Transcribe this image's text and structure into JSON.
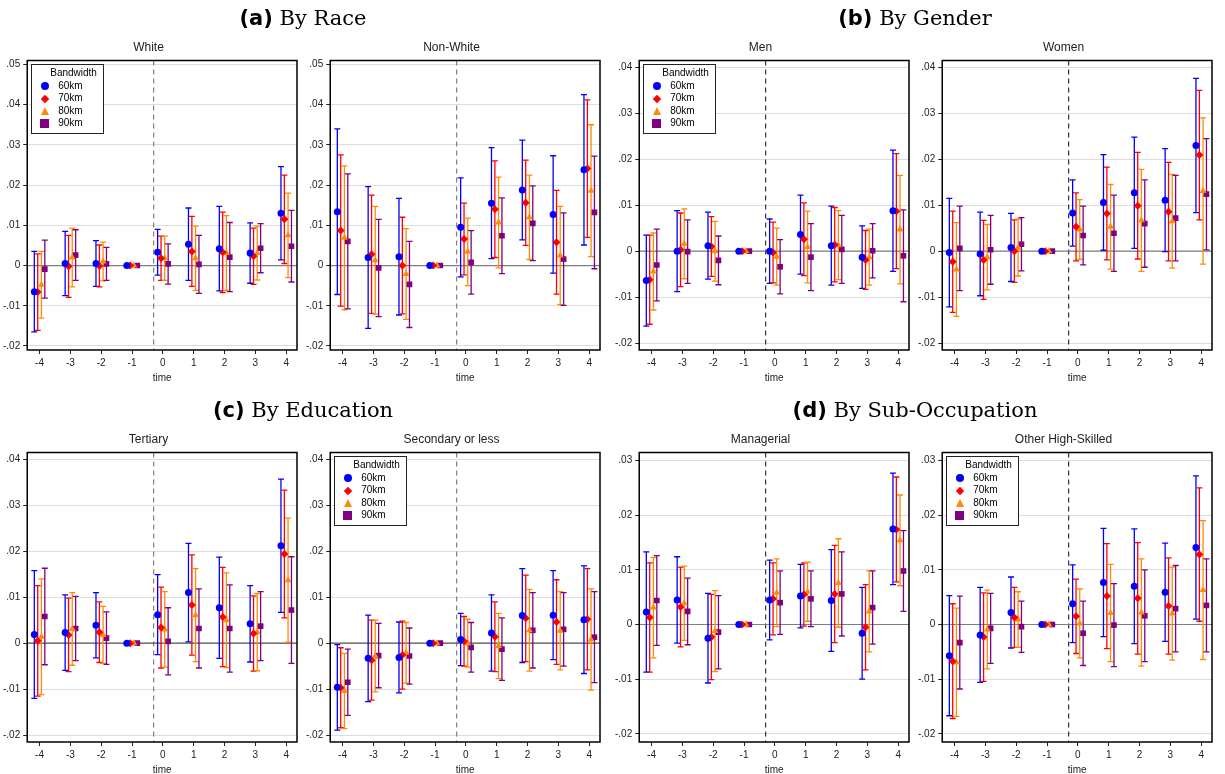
{
  "chart_data": [
    {
      "type": "scatter",
      "title": "White",
      "annotations": [
        "(a) By Race"
      ],
      "xlabel": "time",
      "xlim": [
        -4.4,
        4.35
      ],
      "xticks": [
        -4,
        -3,
        -2,
        -1,
        0,
        1,
        2,
        3,
        4
      ],
      "ylim": [
        -0.021,
        0.051
      ],
      "yticks": [
        {
          "value": -0.02,
          "label": "-.02"
        },
        {
          "value": -0.01,
          "label": "-.01"
        },
        {
          "value": 0,
          "label": "0"
        },
        {
          "value": 0.01,
          "label": ".01"
        },
        {
          "value": 0.02,
          "label": ".02"
        },
        {
          "value": 0.03,
          "label": ".03"
        },
        {
          "value": 0.04,
          "label": ".04"
        },
        {
          "value": 0.05,
          "label": ".05"
        }
      ],
      "grid": "y",
      "legend": "top left",
      "legend_title": "Bandwidth",
      "ref_lines": [
        {
          "axis": "x",
          "value": -0.3,
          "color": "#7f7f7f",
          "line_style": "dashed"
        },
        {
          "axis": "y",
          "value": 0,
          "color": "#7f7f7f",
          "line_style": "solid"
        }
      ],
      "series": [
        {
          "name": "60km",
          "color": "#0000ff",
          "marker": "circle",
          "x": [
            -4.17,
            -3.17,
            -2.17,
            -1.17,
            -0.17,
            0.83,
            1.83,
            2.83,
            3.83
          ],
          "values": [
            -0.0065,
            0.0005,
            0.0005,
            0,
            0.0033,
            0.0053,
            0.0042,
            0.0031,
            0.013
          ],
          "errors": [
            0.01,
            0.008,
            0.0057,
            0,
            0.0057,
            0.009,
            0.0105,
            0.0075,
            0.0116
          ]
        },
        {
          "name": "70km",
          "color": "#ff0000",
          "marker": "diamond",
          "x": [
            -4.06,
            -3.06,
            -2.06,
            -1.06,
            -0.06,
            0.94,
            1.94,
            2.94,
            3.94
          ],
          "values": [
            -0.0066,
            -0.0002,
            -0.0001,
            0,
            0.0018,
            0.0035,
            0.0033,
            0.0023,
            0.0115
          ],
          "errors": [
            0.0095,
            0.0077,
            0.0052,
            0,
            0.0055,
            0.0087,
            0.01,
            0.007,
            0.011
          ]
        },
        {
          "name": "80km",
          "color": "#ff8c00",
          "marker": "triangle",
          "x": [
            -3.94,
            -2.94,
            -1.94,
            -0.94,
            0.06,
            1.06,
            2.06,
            3.06,
            4.06
          ],
          "values": [
            -0.0048,
            0.002,
            0.001,
            0,
            0.0018,
            0.0018,
            0.0031,
            0.0031,
            0.0075
          ],
          "errors": [
            0.0083,
            0.0073,
            0.0048,
            0,
            0.0055,
            0.008,
            0.0093,
            0.0067,
            0.0105
          ]
        },
        {
          "name": "90km",
          "color": "#800080",
          "marker": "square",
          "x": [
            -3.83,
            -2.83,
            -1.83,
            -0.83,
            0.17,
            1.17,
            2.17,
            3.17,
            4.17
          ],
          "values": [
            -0.0009,
            0.0026,
            0.0004,
            0,
            0.0004,
            0.0003,
            0.0021,
            0.0043,
            0.0048
          ],
          "errors": [
            0.0072,
            0.0063,
            0.0041,
            0,
            0.005,
            0.0072,
            0.0086,
            0.0061,
            0.0089
          ]
        }
      ]
    },
    {
      "type": "scatter",
      "title": "Non-White",
      "xlabel": "time",
      "xlim": [
        -4.4,
        4.35
      ],
      "xticks": [
        -4,
        -3,
        -2,
        -1,
        0,
        1,
        2,
        3,
        4
      ],
      "ylim": [
        -0.021,
        0.051
      ],
      "yticks": [
        {
          "value": -0.02,
          "label": "-.02"
        },
        {
          "value": -0.01,
          "label": "-.01"
        },
        {
          "value": 0,
          "label": "0"
        },
        {
          "value": 0.01,
          "label": ".01"
        },
        {
          "value": 0.02,
          "label": ".02"
        },
        {
          "value": 0.03,
          "label": ".03"
        },
        {
          "value": 0.04,
          "label": ".04"
        },
        {
          "value": 0.05,
          "label": ".05"
        }
      ],
      "grid": "y",
      "ref_lines": [
        {
          "axis": "x",
          "value": -0.3,
          "color": "#7f7f7f",
          "line_style": "dashed"
        },
        {
          "axis": "y",
          "value": 0,
          "color": "#7f7f7f",
          "line_style": "solid"
        }
      ],
      "series": [
        {
          "color": "#0000ff",
          "marker": "circle",
          "x": [
            -4.17,
            -3.17,
            -2.17,
            -1.17,
            -0.17,
            0.83,
            1.83,
            2.83,
            3.83
          ],
          "values": [
            0.0134,
            0.002,
            0.0022,
            0,
            0.0095,
            0.0155,
            0.0188,
            0.0127,
            0.0238
          ],
          "errors": [
            0.0206,
            0.0176,
            0.0145,
            0,
            0.0123,
            0.0138,
            0.0124,
            0.0146,
            0.0187
          ]
        },
        {
          "color": "#ff0000",
          "marker": "diamond",
          "x": [
            -4.06,
            -3.06,
            -2.06,
            -1.06,
            -0.06,
            0.94,
            1.94,
            2.94,
            3.94
          ],
          "values": [
            0.0087,
            0.0028,
            0,
            0,
            0.0066,
            0.014,
            0.0156,
            0.0058,
            0.0241
          ],
          "errors": [
            0.0188,
            0.0147,
            0.012,
            0,
            0.0089,
            0.012,
            0.0106,
            0.0129,
            0.0171
          ]
        },
        {
          "color": "#ff8c00",
          "marker": "triangle",
          "x": [
            -3.94,
            -2.94,
            -1.94,
            -0.94,
            0.06,
            1.06,
            2.06,
            3.06,
            4.06
          ],
          "values": [
            0.0069,
            0.0013,
            -0.0021,
            0,
            0.0034,
            0.0107,
            0.012,
            0.0025,
            0.0186
          ],
          "errors": [
            0.0179,
            0.0134,
            0.0113,
            0,
            0.0084,
            0.0113,
            0.0105,
            0.0122,
            0.0164
          ]
        },
        {
          "color": "#800080",
          "marker": "square",
          "x": [
            -3.83,
            -2.83,
            -1.83,
            -0.83,
            0.17,
            1.17,
            2.17,
            3.17,
            4.17
          ],
          "values": [
            0.006,
            -0.0006,
            -0.0047,
            0,
            0.0008,
            0.0074,
            0.0105,
            0.0016,
            0.0132
          ],
          "errors": [
            0.0168,
            0.0121,
            0.0107,
            0,
            0.0079,
            0.0094,
            0.0093,
            0.0115,
            0.014
          ]
        }
      ]
    },
    {
      "type": "scatter",
      "title": "Men",
      "annotations": [
        "(b) By Gender"
      ],
      "xlabel": "time",
      "xlim": [
        -4.4,
        4.35
      ],
      "xticks": [
        -4,
        -3,
        -2,
        -1,
        0,
        1,
        2,
        3,
        4
      ],
      "ylim": [
        -0.0215,
        0.0415
      ],
      "yticks": [
        {
          "value": -0.02,
          "label": "-.02"
        },
        {
          "value": -0.01,
          "label": "-.01"
        },
        {
          "value": 0,
          "label": "0"
        },
        {
          "value": 0.01,
          "label": ".01"
        },
        {
          "value": 0.02,
          "label": ".02"
        },
        {
          "value": 0.03,
          "label": ".03"
        },
        {
          "value": 0.04,
          "label": ".04"
        }
      ],
      "grid": "y",
      "legend": "top left",
      "legend_title": "Bandwidth",
      "ref_lines": [
        {
          "axis": "x",
          "value": -0.3,
          "color": "#333333",
          "line_style": "dashed"
        },
        {
          "axis": "y",
          "value": 0,
          "color": "#7f7f7f",
          "line_style": "solid"
        }
      ],
      "series": [
        {
          "name": "60km",
          "color": "#0000ff",
          "marker": "circle",
          "x": [
            -4.17,
            -3.17,
            -2.17,
            -1.17,
            -0.17,
            0.83,
            1.83,
            2.83,
            3.83
          ],
          "values": [
            -0.0064,
            0,
            0.0012,
            0,
            0,
            0.0036,
            0.0012,
            -0.0013,
            0.0088
          ],
          "errors": [
            0.0099,
            0.0088,
            0.0073,
            0,
            0.007,
            0.0086,
            0.0086,
            0.0068,
            0.0132
          ]
        },
        {
          "name": "70km",
          "color": "#ff0000",
          "marker": "diamond",
          "x": [
            -4.06,
            -3.06,
            -2.06,
            -1.06,
            -0.06,
            0.94,
            1.94,
            2.94,
            3.94
          ],
          "values": [
            -0.0062,
            0.0003,
            0.001,
            0,
            -0.0003,
            0.0026,
            0.0014,
            -0.0019,
            0.0087
          ],
          "errors": [
            0.0097,
            0.008,
            0.0065,
            0,
            0.0066,
            0.0079,
            0.0081,
            0.0064,
            0.0125
          ]
        },
        {
          "name": "80km",
          "color": "#ff8c00",
          "marker": "triangle",
          "x": [
            -3.94,
            -2.94,
            -1.94,
            -0.94,
            0.06,
            1.06,
            2.06,
            3.06,
            4.06
          ],
          "values": [
            -0.0044,
            0.0016,
            0,
            0,
            -0.0012,
            0.0009,
            0.0013,
            -0.0013,
            0.0047
          ],
          "errors": [
            0.0084,
            0.0076,
            0.0065,
            0,
            0.0062,
            0.0078,
            0.0075,
            0.0061,
            0.0118
          ]
        },
        {
          "name": "90km",
          "color": "#800080",
          "marker": "square",
          "x": [
            -3.83,
            -2.83,
            -1.83,
            -0.83,
            0.17,
            1.17,
            2.17,
            3.17,
            4.17
          ],
          "values": [
            -0.003,
            -0.0001,
            -0.002,
            0,
            -0.0034,
            -0.0013,
            0.0004,
            0.0001,
            -0.001
          ],
          "errors": [
            0.0078,
            0.0069,
            0.0053,
            0,
            0.0059,
            0.0073,
            0.0074,
            0.0059,
            0.01
          ]
        }
      ]
    },
    {
      "type": "scatter",
      "title": "Women",
      "xlabel": "time",
      "xlim": [
        -4.4,
        4.35
      ],
      "xticks": [
        -4,
        -3,
        -2,
        -1,
        0,
        1,
        2,
        3,
        4
      ],
      "ylim": [
        -0.0215,
        0.0415
      ],
      "yticks": [
        {
          "value": -0.02,
          "label": "-.02"
        },
        {
          "value": -0.01,
          "label": "-.01"
        },
        {
          "value": 0,
          "label": "0"
        },
        {
          "value": 0.01,
          "label": ".01"
        },
        {
          "value": 0.02,
          "label": ".02"
        },
        {
          "value": 0.03,
          "label": ".03"
        },
        {
          "value": 0.04,
          "label": ".04"
        }
      ],
      "grid": "y",
      "ref_lines": [
        {
          "axis": "x",
          "value": -0.3,
          "color": "#333333",
          "line_style": "dashed"
        },
        {
          "axis": "y",
          "value": 0,
          "color": "#7f7f7f",
          "line_style": "solid"
        }
      ],
      "series": [
        {
          "color": "#0000ff",
          "marker": "circle",
          "x": [
            -4.17,
            -3.17,
            -2.17,
            -1.17,
            -0.17,
            0.83,
            1.83,
            2.83,
            3.83
          ],
          "values": [
            -0.0003,
            -0.0006,
            0.0008,
            0,
            0.0083,
            0.0106,
            0.0127,
            0.0111,
            0.023
          ],
          "errors": [
            0.0118,
            0.0091,
            0.0074,
            0,
            0.0072,
            0.0104,
            0.0121,
            0.0112,
            0.0146
          ]
        },
        {
          "color": "#ff0000",
          "marker": "diamond",
          "x": [
            -4.06,
            -3.06,
            -2.06,
            -1.06,
            -0.06,
            0.94,
            1.94,
            2.94,
            3.94
          ],
          "values": [
            -0.0023,
            -0.0019,
            0,
            0,
            0.0053,
            0.0082,
            0.0099,
            0.0086,
            0.0209
          ],
          "errors": [
            0.011,
            0.0086,
            0.0068,
            0,
            0.0074,
            0.0101,
            0.0116,
            0.0107,
            0.0141
          ]
        },
        {
          "color": "#ff8c00",
          "marker": "triangle",
          "x": [
            -3.94,
            -2.94,
            -1.94,
            -0.94,
            0.06,
            1.06,
            2.06,
            3.06,
            4.06
          ],
          "values": [
            -0.004,
            -0.0013,
            0.0008,
            0,
            0.0047,
            0.0053,
            0.0067,
            0.0065,
            0.0131
          ],
          "errors": [
            0.0102,
            0.0071,
            0.0062,
            0,
            0.0065,
            0.0092,
            0.0111,
            0.0102,
            0.0159
          ]
        },
        {
          "color": "#800080",
          "marker": "square",
          "x": [
            -3.83,
            -2.83,
            -1.83,
            -0.83,
            0.17,
            1.17,
            2.17,
            3.17,
            4.17
          ],
          "values": [
            0.0006,
            0.0003,
            0.0015,
            0,
            0.0034,
            0.0039,
            0.006,
            0.0072,
            0.0124
          ],
          "errors": [
            0.0092,
            0.0075,
            0.0058,
            0,
            0.0064,
            0.0083,
            0.0095,
            0.0093,
            0.0121
          ]
        }
      ]
    },
    {
      "type": "scatter",
      "title": "Tertiary",
      "annotations": [
        "(c) By Education"
      ],
      "xlabel": "time",
      "xlim": [
        -4.4,
        4.35
      ],
      "xticks": [
        -4,
        -3,
        -2,
        -1,
        0,
        1,
        2,
        3,
        4
      ],
      "ylim": [
        -0.0215,
        0.0415
      ],
      "yticks": [
        {
          "value": -0.02,
          "label": "-.02"
        },
        {
          "value": -0.01,
          "label": "-.01"
        },
        {
          "value": 0,
          "label": "0"
        },
        {
          "value": 0.01,
          "label": ".01"
        },
        {
          "value": 0.02,
          "label": ".02"
        },
        {
          "value": 0.03,
          "label": ".03"
        },
        {
          "value": 0.04,
          "label": ".04"
        }
      ],
      "grid": "y",
      "ref_lines": [
        {
          "axis": "x",
          "value": -0.3,
          "color": "#7f7f7f",
          "line_style": "dashed"
        },
        {
          "axis": "y",
          "value": 0,
          "color": "#555555",
          "line_style": "solid"
        }
      ],
      "series": [
        {
          "color": "#0000ff",
          "marker": "circle",
          "x": [
            -4.17,
            -3.17,
            -2.17,
            -1.17,
            -0.17,
            0.83,
            1.83,
            2.83,
            3.83
          ],
          "values": [
            0.0019,
            0.0023,
            0.0039,
            0,
            0.0062,
            0.011,
            0.0077,
            0.0042,
            0.0212
          ],
          "errors": [
            0.0139,
            0.0082,
            0.0071,
            0,
            0.0087,
            0.0107,
            0.011,
            0.0083,
            0.0145
          ]
        },
        {
          "color": "#ff0000",
          "marker": "diamond",
          "x": [
            -4.06,
            -3.06,
            -2.06,
            -1.06,
            -0.06,
            0.94,
            1.94,
            2.94,
            3.94
          ],
          "values": [
            0.0005,
            0.0018,
            0.0024,
            0,
            0.0034,
            0.0083,
            0.0057,
            0.0021,
            0.0194
          ],
          "errors": [
            0.012,
            0.008,
            0.0066,
            0,
            0.0088,
            0.0109,
            0.0108,
            0.0082,
            0.0139
          ]
        },
        {
          "color": "#ff8c00",
          "marker": "triangle",
          "x": [
            -3.94,
            -2.94,
            -1.94,
            -0.94,
            0.06,
            1.06,
            2.06,
            3.06,
            4.06
          ],
          "values": [
            0.0014,
            0.0031,
            0.0018,
            0,
            0.003,
            0.0061,
            0.005,
            0.0024,
            0.0137
          ],
          "errors": [
            0.0126,
            0.0079,
            0.0062,
            0,
            0.0082,
            0.0101,
            0.0103,
            0.0084,
            0.0135
          ]
        },
        {
          "color": "#800080",
          "marker": "square",
          "x": [
            -3.83,
            -2.83,
            -1.83,
            -0.83,
            0.17,
            1.17,
            2.17,
            3.17,
            4.17
          ],
          "values": [
            0.0058,
            0.0032,
            0.0011,
            0,
            0.0004,
            0.0032,
            0.0032,
            0.0037,
            0.0072
          ],
          "errors": [
            0.0105,
            0.007,
            0.0057,
            0,
            0.0073,
            0.0086,
            0.0095,
            0.0075,
            0.0116
          ]
        }
      ]
    },
    {
      "type": "scatter",
      "title": "Secondary or less",
      "xlabel": "time",
      "xlim": [
        -4.4,
        4.35
      ],
      "xticks": [
        -4,
        -3,
        -2,
        -1,
        0,
        1,
        2,
        3,
        4
      ],
      "ylim": [
        -0.0215,
        0.0415
      ],
      "yticks": [
        {
          "value": -0.02,
          "label": "-.02"
        },
        {
          "value": -0.01,
          "label": "-.01"
        },
        {
          "value": 0,
          "label": "0"
        },
        {
          "value": 0.01,
          "label": ".01"
        },
        {
          "value": 0.02,
          "label": ".02"
        },
        {
          "value": 0.03,
          "label": ".03"
        },
        {
          "value": 0.04,
          "label": ".04"
        }
      ],
      "grid": "y",
      "legend": "top left",
      "legend_title": "Bandwidth",
      "ref_lines": [
        {
          "axis": "x",
          "value": -0.3,
          "color": "#7f7f7f",
          "line_style": "dashed"
        },
        {
          "axis": "y",
          "value": 0,
          "color": "#555555",
          "line_style": "solid"
        }
      ],
      "series": [
        {
          "name": "60km",
          "color": "#0000ff",
          "marker": "circle",
          "x": [
            -4.17,
            -3.17,
            -2.17,
            -1.17,
            -0.17,
            0.83,
            1.83,
            2.83,
            3.83
          ],
          "values": [
            -0.0096,
            -0.0033,
            -0.0031,
            0,
            0.0008,
            0.0022,
            0.006,
            0.0061,
            0.0051
          ],
          "errors": [
            0.0093,
            0.0094,
            0.0077,
            0,
            0.0057,
            0.0083,
            0.0102,
            0.0097,
            0.0117
          ]
        },
        {
          "name": "70km",
          "color": "#ff0000",
          "marker": "diamond",
          "x": [
            -4.06,
            -3.06,
            -2.06,
            -1.06,
            -0.06,
            0.94,
            1.94,
            2.94,
            3.94
          ],
          "values": [
            -0.0097,
            -0.0037,
            -0.0026,
            0,
            0.0004,
            0.0014,
            0.0054,
            0.0046,
            0.0052
          ],
          "errors": [
            0.0087,
            0.0087,
            0.0074,
            0,
            0.0054,
            0.0076,
            0.0094,
            0.0092,
            0.011
          ]
        },
        {
          "name": "80km",
          "color": "#ff8c00",
          "marker": "triangle",
          "x": [
            -3.94,
            -2.94,
            -1.94,
            -0.94,
            0.06,
            1.06,
            2.06,
            3.06,
            4.06
          ],
          "values": [
            -0.0104,
            -0.0028,
            -0.0021,
            0,
            0,
            -0.0006,
            0.0028,
            0.0027,
            0.0008
          ],
          "errors": [
            0.0082,
            0.0078,
            0.0066,
            0,
            0.0052,
            0.0071,
            0.0089,
            0.0085,
            0.011
          ]
        },
        {
          "name": "90km",
          "color": "#800080",
          "marker": "square",
          "x": [
            -3.83,
            -2.83,
            -1.83,
            -0.83,
            0.17,
            1.17,
            2.17,
            3.17,
            4.17
          ],
          "values": [
            -0.0085,
            -0.0027,
            -0.0028,
            0,
            -0.0009,
            -0.0013,
            0.0028,
            0.003,
            0.0013
          ],
          "errors": [
            0.0072,
            0.007,
            0.0061,
            0,
            0.0054,
            0.0068,
            0.0082,
            0.008,
            0.0099
          ]
        }
      ]
    },
    {
      "type": "scatter",
      "title": "Managerial",
      "annotations": [
        "(d) By Sub-Occupation"
      ],
      "xlabel": "time",
      "xlim": [
        -4.4,
        4.35
      ],
      "xticks": [
        -4,
        -3,
        -2,
        -1,
        0,
        1,
        2,
        3,
        4
      ],
      "ylim": [
        -0.0215,
        0.0315
      ],
      "yticks": [
        {
          "value": -0.02,
          "label": "-.02"
        },
        {
          "value": -0.01,
          "label": "-.01"
        },
        {
          "value": 0,
          "label": "0"
        },
        {
          "value": 0.01,
          "label": ".01"
        },
        {
          "value": 0.02,
          "label": ".02"
        },
        {
          "value": 0.03,
          "label": ".03"
        }
      ],
      "grid": "y",
      "ref_lines": [
        {
          "axis": "x",
          "value": -0.3,
          "color": "#333333",
          "line_style": "dashed"
        },
        {
          "axis": "y",
          "value": 0,
          "color": "#7f7f7f",
          "line_style": "solid"
        }
      ],
      "series": [
        {
          "color": "#0000ff",
          "marker": "circle",
          "x": [
            -4.17,
            -3.17,
            -2.17,
            -1.17,
            -0.17,
            0.83,
            1.83,
            2.83,
            3.83
          ],
          "values": [
            0.0023,
            0.0045,
            -0.0025,
            0,
            0.0045,
            0.0052,
            0.0044,
            -0.0016,
            0.0175
          ],
          "errors": [
            0.011,
            0.0079,
            0.0082,
            0,
            0.0073,
            0.0058,
            0.0093,
            0.0084,
            0.0102
          ]
        },
        {
          "color": "#ff0000",
          "marker": "diamond",
          "x": [
            -4.06,
            -3.06,
            -2.06,
            -1.06,
            -0.06,
            0.94,
            1.94,
            2.94,
            3.94
          ],
          "values": [
            0.0013,
            0.0032,
            -0.0023,
            0,
            0.0047,
            0.0055,
            0.0056,
            -0.0005,
            0.0174
          ],
          "errors": [
            0.01,
            0.0073,
            0.0078,
            0,
            0.0066,
            0.0058,
            0.0089,
            0.0078,
            0.0096
          ]
        },
        {
          "color": "#ff8c00",
          "marker": "triangle",
          "x": [
            -3.94,
            -2.94,
            -1.94,
            -0.94,
            0.06,
            1.06,
            2.06,
            3.06,
            4.06
          ],
          "values": [
            0.0031,
            0.0039,
            -0.0012,
            0,
            0.0058,
            0.006,
            0.0076,
            0.0024,
            0.0154
          ],
          "errors": [
            0.0092,
            0.0068,
            0.0074,
            0,
            0.0062,
            0.0054,
            0.0081,
            0.0074,
            0.0083
          ]
        },
        {
          "color": "#800080",
          "marker": "square",
          "x": [
            -3.83,
            -2.83,
            -1.83,
            -0.83,
            0.17,
            1.17,
            2.17,
            3.17,
            4.17
          ],
          "values": [
            0.0044,
            0.0024,
            -0.0014,
            0,
            0.004,
            0.0047,
            0.0056,
            0.0031,
            0.0098
          ],
          "errors": [
            0.0082,
            0.0061,
            0.0067,
            0,
            0.0058,
            0.0051,
            0.0077,
            0.0067,
            0.0074
          ]
        }
      ]
    },
    {
      "type": "scatter",
      "title": "Other High-Skilled",
      "xlabel": "time",
      "xlim": [
        -4.4,
        4.35
      ],
      "xticks": [
        -4,
        -3,
        -2,
        -1,
        0,
        1,
        2,
        3,
        4
      ],
      "ylim": [
        -0.0215,
        0.0315
      ],
      "yticks": [
        {
          "value": -0.02,
          "label": "-.02"
        },
        {
          "value": -0.01,
          "label": "-.01"
        },
        {
          "value": 0,
          "label": "0"
        },
        {
          "value": 0.01,
          "label": ".01"
        },
        {
          "value": 0.02,
          "label": ".02"
        },
        {
          "value": 0.03,
          "label": ".03"
        }
      ],
      "grid": "y",
      "legend": "top left",
      "legend_title": "Bandwidth",
      "ref_lines": [
        {
          "axis": "x",
          "value": -0.3,
          "color": "#333333",
          "line_style": "dashed"
        },
        {
          "axis": "y",
          "value": 0,
          "color": "#7f7f7f",
          "line_style": "solid"
        }
      ],
      "series": [
        {
          "name": "60km",
          "color": "#0000ff",
          "marker": "circle",
          "x": [
            -4.17,
            -3.17,
            -2.17,
            -1.17,
            -0.17,
            0.83,
            1.83,
            2.83,
            3.83
          ],
          "values": [
            -0.0057,
            -0.0019,
            0.0022,
            0,
            0.0038,
            0.0077,
            0.007,
            0.0059,
            0.0141
          ],
          "errors": [
            0.011,
            0.0087,
            0.0065,
            0,
            0.0071,
            0.0099,
            0.0105,
            0.009,
            0.0131
          ]
        },
        {
          "name": "70km",
          "color": "#ff0000",
          "marker": "diamond",
          "x": [
            -4.06,
            -3.06,
            -2.06,
            -1.06,
            -0.06,
            0.94,
            1.94,
            2.94,
            3.94
          ],
          "values": [
            -0.0067,
            -0.0023,
            0.0013,
            0,
            0.0015,
            0.0052,
            0.0048,
            0.0034,
            0.0128
          ],
          "errors": [
            0.0105,
            0.0081,
            0.0055,
            0,
            0.0068,
            0.0096,
            0.0102,
            0.0088,
            0.0122
          ]
        },
        {
          "name": "80km",
          "color": "#ff8c00",
          "marker": "triangle",
          "x": [
            -3.94,
            -2.94,
            -1.94,
            -0.94,
            0.06,
            1.06,
            2.06,
            3.06,
            4.06
          ],
          "values": [
            -0.0069,
            -0.0009,
            0.0009,
            0,
            0.0002,
            0.0021,
            0.0022,
            0.002,
            0.0063
          ],
          "errors": [
            0.0099,
            0.0072,
            0.0051,
            0,
            0.0063,
            0.0089,
            0.0098,
            0.0085,
            0.0127
          ]
        },
        {
          "name": "90km",
          "color": "#800080",
          "marker": "square",
          "x": [
            -3.83,
            -2.83,
            -1.83,
            -0.83,
            0.17,
            1.17,
            2.17,
            3.17,
            4.17
          ],
          "values": [
            -0.0033,
            -0.0007,
            -0.0004,
            0,
            -0.0016,
            -0.0001,
            0.0016,
            0.0029,
            0.0035
          ],
          "errors": [
            0.0085,
            0.0064,
            0.0047,
            0,
            0.0059,
            0.0076,
            0.0084,
            0.0079,
            0.0085
          ]
        }
      ]
    }
  ]
}
